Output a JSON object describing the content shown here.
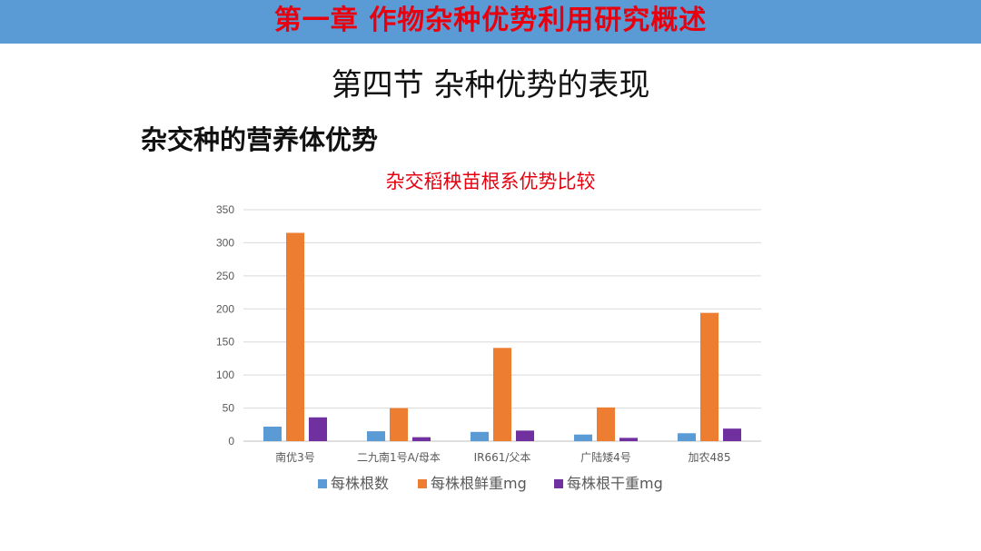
{
  "header": {
    "banner_title": "第一章  作物杂种优势利用研究概述"
  },
  "slide": {
    "section_title": "第四节 杂种优势的表现",
    "subtitle": "杂交种的营养体优势"
  },
  "colors": {
    "banner": "#5b9bd5",
    "title_red": "#e8000f",
    "series": [
      "#5b9bd5",
      "#ed7d31",
      "#7030a0"
    ]
  },
  "chart_data": {
    "type": "bar",
    "title": "杂交稻秧苗根系优势比较",
    "categories": [
      "南优3号",
      "二九南1号A/母本",
      "IR661/父本",
      "广陆矮4号",
      "加农485"
    ],
    "series": [
      {
        "name": "每株根数",
        "values": [
          22,
          15,
          14,
          10,
          12
        ]
      },
      {
        "name": "每株根鲜重mg",
        "values": [
          315,
          50,
          141,
          51,
          194
        ]
      },
      {
        "name": "每株根干重mg",
        "values": [
          36,
          6,
          16,
          5,
          19
        ]
      }
    ],
    "yticks": [
      0,
      50,
      100,
      150,
      200,
      250,
      300,
      350
    ],
    "ylim": [
      0,
      350
    ],
    "grid": true,
    "legend": "bottom"
  }
}
